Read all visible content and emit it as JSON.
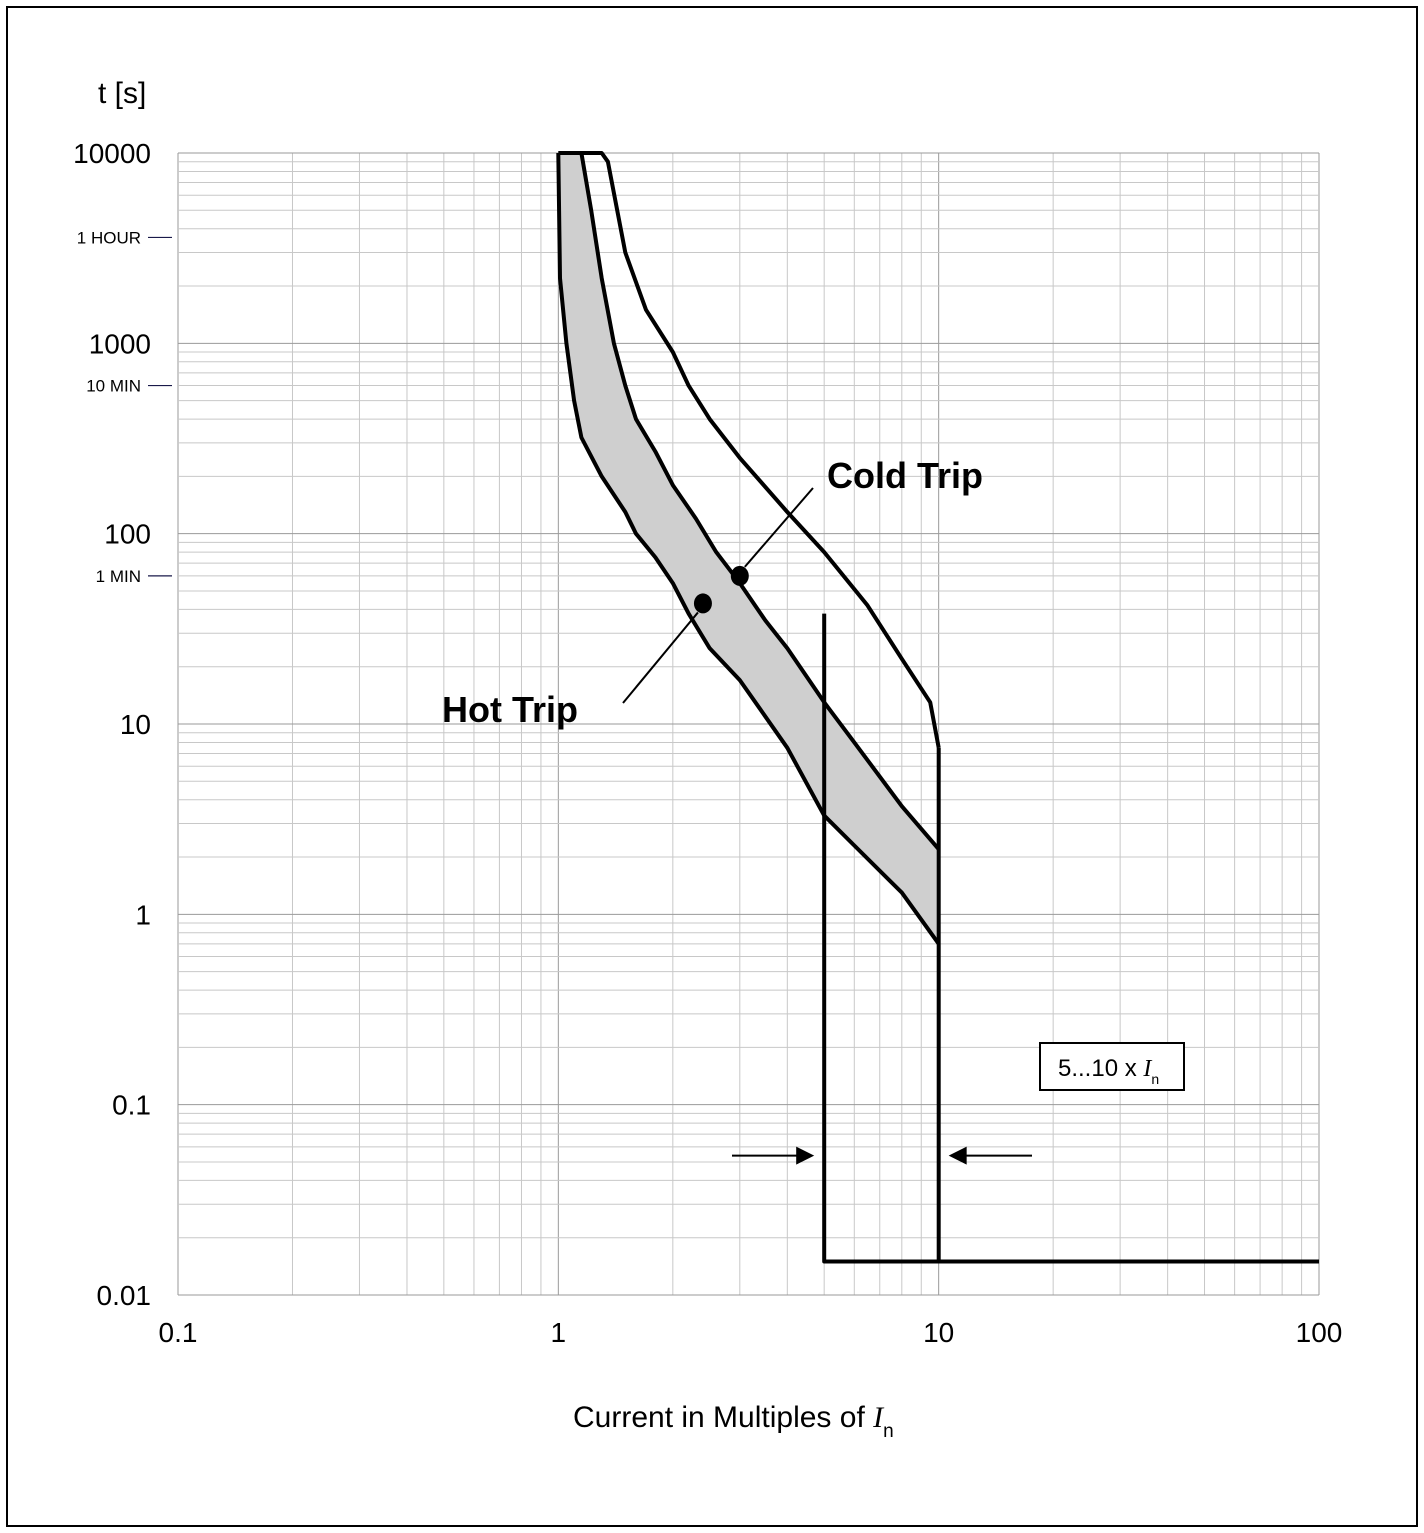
{
  "chart_data": {
    "type": "line",
    "title": "",
    "ylabel": "t [s]",
    "xlabel_main": "Current in Multiples of ",
    "xlabel_symbol": "I",
    "xlabel_subscript": "n",
    "xscale": "log",
    "yscale": "log",
    "xlim": [
      0.1,
      100
    ],
    "ylim": [
      0.01,
      10000
    ],
    "grid": true,
    "x_tick_labels": [
      {
        "value": 0.1,
        "label": "0.1"
      },
      {
        "value": 1,
        "label": "1"
      },
      {
        "value": 10,
        "label": "10"
      },
      {
        "value": 100,
        "label": "100"
      }
    ],
    "y_tick_labels": [
      {
        "value": 0.01,
        "label": "0.01"
      },
      {
        "value": 0.1,
        "label": "0.1"
      },
      {
        "value": 1,
        "label": "1"
      },
      {
        "value": 10,
        "label": "10"
      },
      {
        "value": 100,
        "label": "100"
      },
      {
        "value": 1000,
        "label": "1000"
      },
      {
        "value": 10000,
        "label": "10000"
      }
    ],
    "time_references": [
      {
        "label": "1 HOUR",
        "value": 3600
      },
      {
        "label": "10 MIN",
        "value": 600
      },
      {
        "label": "1 MIN",
        "value": 60
      }
    ],
    "series": [
      {
        "id": "hot-left",
        "points": [
          [
            1.0,
            10000
          ],
          [
            1.01,
            2200
          ],
          [
            1.05,
            1000
          ],
          [
            1.1,
            500
          ],
          [
            1.15,
            320
          ],
          [
            1.3,
            200
          ],
          [
            1.5,
            130
          ],
          [
            1.6,
            100
          ],
          [
            1.8,
            75
          ],
          [
            2.0,
            55
          ],
          [
            2.2,
            38
          ],
          [
            2.5,
            25
          ],
          [
            3.0,
            17
          ],
          [
            4.0,
            7.5
          ],
          [
            5.0,
            3.3
          ],
          [
            6.0,
            2.3
          ],
          [
            8.0,
            1.3
          ],
          [
            10.0,
            0.7
          ]
        ]
      },
      {
        "id": "hot-right",
        "points": [
          [
            1.15,
            10000
          ],
          [
            1.22,
            5000
          ],
          [
            1.3,
            2200
          ],
          [
            1.4,
            1000
          ],
          [
            1.5,
            600
          ],
          [
            1.6,
            400
          ],
          [
            1.8,
            270
          ],
          [
            2.0,
            180
          ],
          [
            2.3,
            120
          ],
          [
            2.6,
            80
          ],
          [
            3.0,
            55
          ],
          [
            3.5,
            35
          ],
          [
            4.0,
            25
          ],
          [
            5.0,
            13
          ],
          [
            6.0,
            8
          ],
          [
            8.0,
            3.7
          ],
          [
            10.0,
            2.2
          ]
        ]
      },
      {
        "id": "cold",
        "points": [
          [
            1.0,
            10000
          ],
          [
            1.3,
            10000
          ],
          [
            1.35,
            9000
          ],
          [
            1.5,
            3000
          ],
          [
            1.7,
            1500
          ],
          [
            2.0,
            900
          ],
          [
            2.2,
            600
          ],
          [
            2.5,
            400
          ],
          [
            3.0,
            250
          ],
          [
            4.0,
            130
          ],
          [
            5.0,
            80
          ],
          [
            6.5,
            42
          ],
          [
            8.0,
            22
          ],
          [
            9.5,
            13
          ],
          [
            10.0,
            7.5
          ]
        ]
      },
      {
        "id": "short-circuit",
        "points": [
          [
            5.0,
            38
          ],
          [
            5.0,
            0.015
          ],
          [
            100,
            0.015
          ]
        ]
      },
      {
        "id": "short-circuit-max",
        "points": [
          [
            10.0,
            7.5
          ],
          [
            10.0,
            0.015
          ]
        ]
      }
    ],
    "annotations": [
      {
        "text": "Cold Trip",
        "marker": [
          3.0,
          60
        ],
        "leader_to": [
          3.35,
          100
        ]
      },
      {
        "text": "Hot Trip",
        "marker": [
          2.4,
          43
        ],
        "leader_to": [
          2.6,
          38
        ]
      }
    ],
    "range_note": {
      "prefix": "5...10 x ",
      "symbol": "I",
      "subscript": "n",
      "x_from": 5,
      "x_to": 10,
      "y": 0.054
    }
  }
}
